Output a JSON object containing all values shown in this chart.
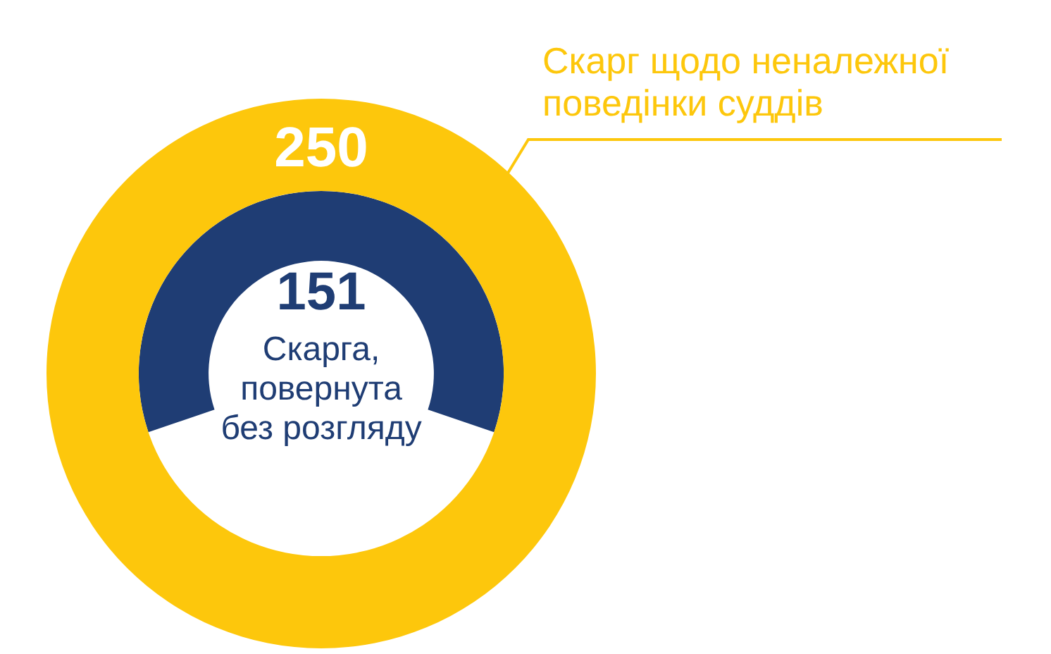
{
  "chart_data": {
    "type": "donut",
    "series": [
      {
        "name": "Скарг щодо неналежної поведінки суддів",
        "color": "#fdc70c",
        "values": [
          250
        ]
      },
      {
        "name": "Скарга, повернута без розгляду",
        "color": "#1f3d74",
        "values": [
          151
        ]
      }
    ],
    "data_labels": true,
    "legend": false
  }
}
